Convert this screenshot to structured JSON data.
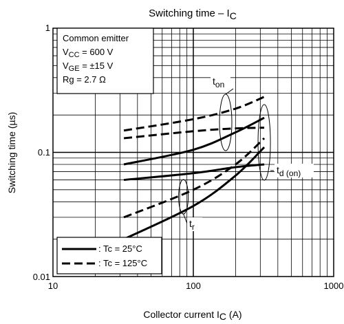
{
  "chart_data": {
    "type": "line",
    "title": {
      "main": "Switching time – I",
      "sub": "C"
    },
    "xlabel": {
      "main": "Collector current   I",
      "sub": "C",
      "unit": "(A)"
    },
    "ylabel": "Switching time   (µs)",
    "xscale": "log",
    "yscale": "log",
    "xlim": [
      10,
      1000
    ],
    "ylim": [
      0.01,
      1
    ],
    "x_tick_labels": [
      "10",
      "100",
      "1000"
    ],
    "y_tick_labels": [
      "0.01",
      "0.1",
      "1"
    ],
    "grid": true,
    "conditions": [
      {
        "main": "Common emitter",
        "sub": "",
        "rest": ""
      },
      {
        "main": "V",
        "sub": "CC",
        "rest": " = 600 V"
      },
      {
        "main": "V",
        "sub": "GE",
        "rest": " = ±15 V"
      },
      {
        "main": "Rg = 2.7 Ω",
        "sub": "",
        "rest": ""
      }
    ],
    "legend": {
      "placement": "bottom-left",
      "entries": [
        {
          "label": ": Tc = 25°C",
          "style": "solid"
        },
        {
          "label": ": Tc = 125°C",
          "style": "dashed"
        }
      ]
    },
    "annotations": [
      {
        "main": "t",
        "sub": "on"
      },
      {
        "main": "t",
        "sub": "d (on)"
      },
      {
        "main": "t",
        "sub": "r"
      }
    ],
    "series": [
      {
        "group": "ton",
        "temp": "25",
        "style": "solid",
        "x": [
          32,
          100,
          200,
          320
        ],
        "y": [
          0.08,
          0.105,
          0.145,
          0.19
        ]
      },
      {
        "group": "ton",
        "temp": "125",
        "style": "dashed",
        "x": [
          32,
          100,
          200,
          320
        ],
        "y": [
          0.15,
          0.185,
          0.225,
          0.28
        ]
      },
      {
        "group": "tdon",
        "temp": "25",
        "style": "solid",
        "x": [
          32,
          100,
          200,
          320
        ],
        "y": [
          0.06,
          0.068,
          0.076,
          0.08
        ]
      },
      {
        "group": "tdon",
        "temp": "125",
        "style": "dashed",
        "x": [
          32,
          100,
          200,
          320
        ],
        "y": [
          0.13,
          0.148,
          0.156,
          0.158
        ]
      },
      {
        "group": "tr",
        "temp": "25",
        "style": "solid",
        "x": [
          32,
          100,
          200,
          320
        ],
        "y": [
          0.02,
          0.037,
          0.065,
          0.11
        ]
      },
      {
        "group": "tr",
        "temp": "125",
        "style": "dashed",
        "x": [
          32,
          100,
          200,
          320
        ],
        "y": [
          0.03,
          0.05,
          0.08,
          0.13
        ]
      }
    ]
  }
}
